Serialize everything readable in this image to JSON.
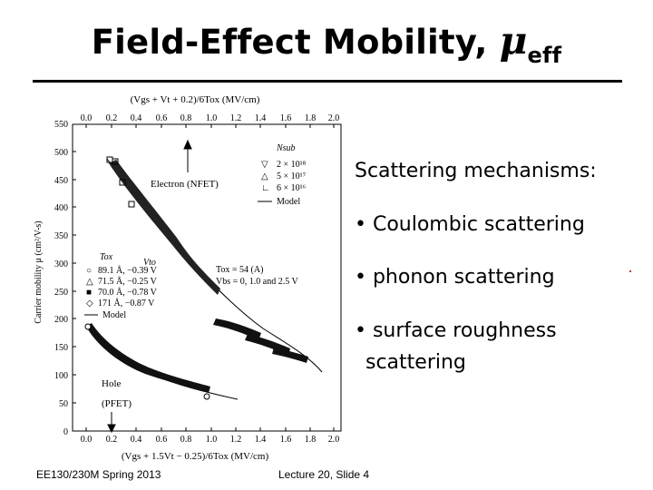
{
  "slide": {
    "title_main": "Field-Effect Mobility, ",
    "title_mu": "μ",
    "title_sub": "eff",
    "footer_left": "EE130/230M Spring 2013",
    "footer_center": "Lecture 20, Slide 4"
  },
  "bullets": {
    "heading": "Scattering mechanisms:",
    "items": [
      "• Coulombic scattering",
      "• phonon scattering",
      "• surface roughness",
      "scattering"
    ]
  },
  "figure": {
    "top_axis_label": "(Vgs + Vt + 0.2)/6Tox (MV/cm)",
    "bottom_axis_label": "(Vgs + 1.5Vt − 0.25)/6Tox (MV/cm)",
    "y_axis_label": "Carrier mobility μ (cm²/V-s)",
    "x_ticks": [
      "0.0",
      "0.2",
      "0.4",
      "0.6",
      "0.8",
      "1.0",
      "1.2",
      "1.4",
      "1.6",
      "1.8",
      "2.0"
    ],
    "y_ticks": [
      "0",
      "50",
      "100",
      "150",
      "200",
      "250",
      "300",
      "350",
      "400",
      "450",
      "500",
      "550"
    ],
    "label_electron": "Electron (NFET)",
    "label_hole": "Hole",
    "label_pfet": "(PFET)",
    "legend_nsub": {
      "title": "Nsub",
      "items": [
        "2 × 10¹⁸",
        "5 × 10¹⁷",
        "6 × 10¹⁶"
      ],
      "model": "Model"
    },
    "legend_tox": {
      "title": "Tox",
      "col_vt": "Vto",
      "items": [
        "89.1 Å, −0.39 V",
        "71.5 Å, −0.25 V",
        "70.0 Å, −0.78 V",
        "171 Å, −0.87 V"
      ],
      "model": "Model"
    },
    "conditions": [
      "Tox = 54 (A)",
      "Vbs = 0, 1.0 and 2.5 V"
    ]
  },
  "colors": {
    "text": "#000000",
    "background": "#ffffff"
  }
}
